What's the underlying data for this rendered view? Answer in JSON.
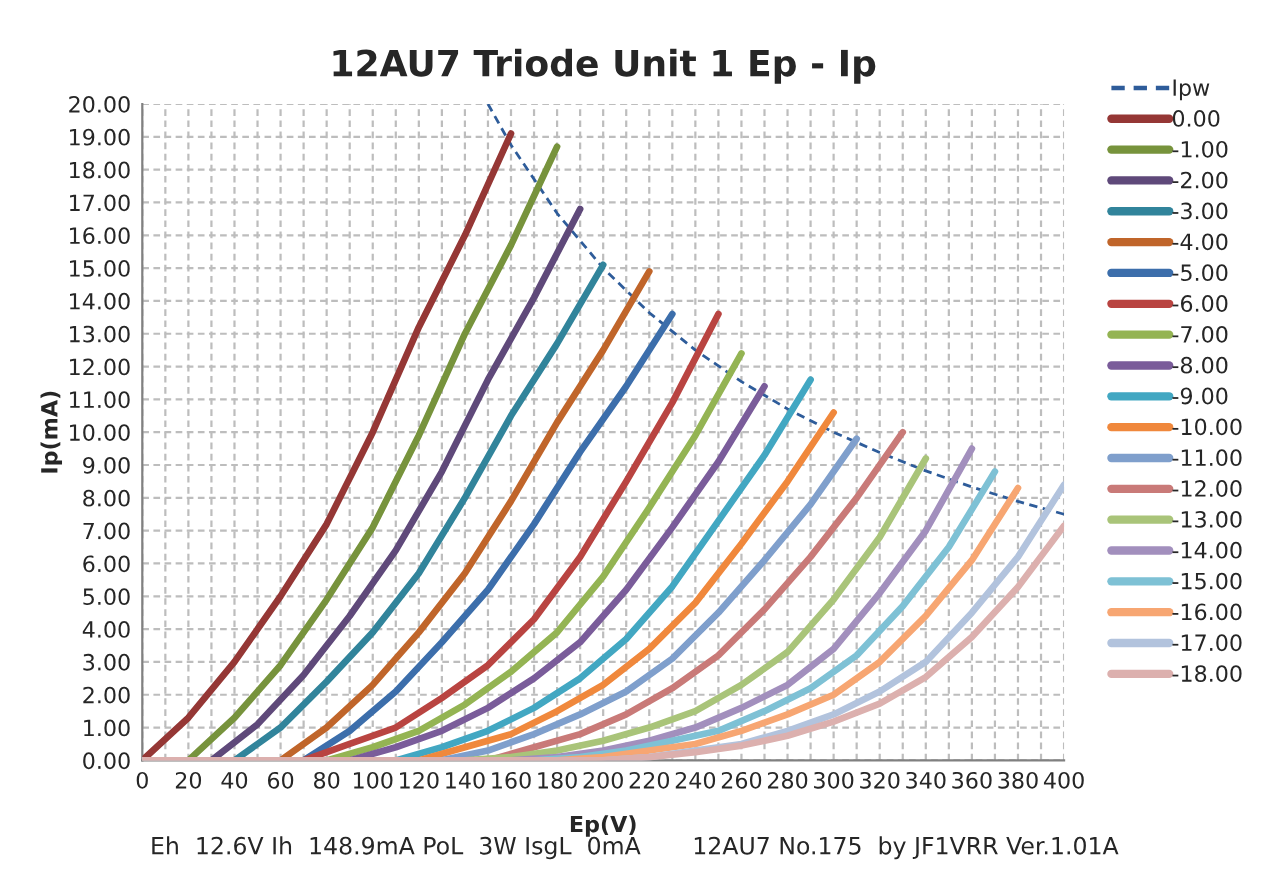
{
  "chart_data": {
    "type": "line",
    "title": "12AU7 Triode Unit 1 Ep - Ip",
    "xlabel": "Ep(V)",
    "ylabel": "Ip(mA)",
    "annotations": [
      "Eh  12.6V Ih  148.9mA PoL  3W IsgL  0mA",
      "12AU7 No.175  by JF1VRR Ver.1.01A"
    ],
    "xlim": [
      0,
      400
    ],
    "ylim": [
      0,
      20
    ],
    "xticks": [
      0,
      {
        "value": 10,
        "label": null
      },
      20,
      {
        "value": 30,
        "label": null
      },
      40,
      {
        "value": 50,
        "label": null
      },
      60,
      {
        "value": 70,
        "label": null
      },
      80,
      {
        "value": 90,
        "label": null
      },
      100,
      {
        "value": 110,
        "label": null
      },
      120,
      {
        "value": 130,
        "label": null
      },
      140,
      {
        "value": 150,
        "label": null
      },
      160,
      {
        "value": 170,
        "label": null
      },
      180,
      {
        "value": 190,
        "label": null
      },
      200,
      {
        "value": 210,
        "label": null
      },
      220,
      {
        "value": 230,
        "label": null
      },
      240,
      {
        "value": 250,
        "label": null
      },
      260,
      {
        "value": 270,
        "label": null
      },
      280,
      {
        "value": 290,
        "label": null
      },
      300,
      {
        "value": 310,
        "label": null
      },
      320,
      {
        "value": 330,
        "label": null
      },
      340,
      {
        "value": 350,
        "label": null
      },
      360,
      {
        "value": 370,
        "label": null
      },
      380,
      {
        "value": 390,
        "label": null
      },
      400
    ],
    "yticks": [
      {
        "value": 0,
        "label": "0.00"
      },
      {
        "value": 1,
        "label": "1.00"
      },
      {
        "value": 2,
        "label": "2.00"
      },
      {
        "value": 3,
        "label": "3.00"
      },
      {
        "value": 4,
        "label": "4.00"
      },
      {
        "value": 5,
        "label": "5.00"
      },
      {
        "value": 6,
        "label": "6.00"
      },
      {
        "value": 7,
        "label": "7.00"
      },
      {
        "value": 8,
        "label": "8.00"
      },
      {
        "value": 9,
        "label": "9.00"
      },
      {
        "value": 10,
        "label": "10.00"
      },
      {
        "value": 11,
        "label": "11.00"
      },
      {
        "value": 12,
        "label": "12.00"
      },
      {
        "value": 13,
        "label": "13.00"
      },
      {
        "value": 14,
        "label": "14.00"
      },
      {
        "value": 15,
        "label": "15.00"
      },
      {
        "value": 16,
        "label": "16.00"
      },
      {
        "value": 17,
        "label": "17.00"
      },
      {
        "value": 18,
        "label": "18.00"
      },
      {
        "value": 19,
        "label": "19.00"
      },
      {
        "value": 20,
        "label": "20.00"
      }
    ],
    "grid": true,
    "legend": "right",
    "marker": "none",
    "series": [
      {
        "name": "Ipw",
        "color": "#2e5c9a",
        "line_style": "dashed",
        "x": [
          150,
          160,
          180,
          200,
          220,
          240,
          260,
          280,
          300,
          320,
          340,
          360,
          380,
          400
        ],
        "values": [
          20,
          18.75,
          16.67,
          15,
          13.64,
          12.5,
          11.54,
          10.71,
          10,
          9.38,
          8.82,
          8.33,
          7.89,
          7.5
        ]
      },
      {
        "name": "0.00",
        "color": "#953735",
        "x": [
          0,
          20,
          40,
          60,
          80,
          100,
          120,
          140,
          160
        ],
        "values": [
          0,
          1.3,
          3.0,
          5.0,
          7.2,
          10.0,
          13.2,
          16.0,
          19.1
        ]
      },
      {
        "name": "-1.00",
        "color": "#77933c",
        "x": [
          0,
          20,
          40,
          60,
          80,
          100,
          120,
          140,
          160,
          180
        ],
        "values": [
          0,
          0,
          1.3,
          2.9,
          4.9,
          7.1,
          9.9,
          13.0,
          15.7,
          18.7
        ]
      },
      {
        "name": "-2.00",
        "color": "#5f497a",
        "x": [
          0,
          30,
          50,
          70,
          90,
          110,
          130,
          150,
          170,
          190
        ],
        "values": [
          0,
          0,
          1.1,
          2.6,
          4.4,
          6.4,
          8.8,
          11.6,
          14.1,
          16.8
        ]
      },
      {
        "name": "-3.00",
        "color": "#31849b",
        "x": [
          0,
          40,
          60,
          80,
          100,
          120,
          140,
          160,
          180,
          200
        ],
        "values": [
          0,
          0,
          1.0,
          2.4,
          3.9,
          5.7,
          8.0,
          10.5,
          12.7,
          15.1
        ]
      },
      {
        "name": "-4.00",
        "color": "#c0652a",
        "x": [
          0,
          60,
          80,
          100,
          120,
          140,
          160,
          180,
          200,
          220
        ],
        "values": [
          0,
          0,
          1.0,
          2.3,
          3.9,
          5.7,
          7.9,
          10.3,
          12.5,
          14.9
        ]
      },
      {
        "name": "-5.00",
        "color": "#3c6eab",
        "x": [
          0,
          70,
          90,
          110,
          130,
          150,
          170,
          190,
          210,
          230
        ],
        "values": [
          0,
          0,
          0.9,
          2.1,
          3.6,
          5.2,
          7.2,
          9.4,
          11.4,
          13.6
        ]
      },
      {
        "name": "-6.00",
        "color": "#b94441",
        "x": [
          0,
          70,
          90,
          110,
          130,
          150,
          170,
          190,
          210,
          230,
          250
        ],
        "values": [
          0,
          0,
          0.5,
          1.0,
          1.9,
          2.9,
          4.3,
          6.2,
          8.5,
          10.9,
          13.6
        ]
      },
      {
        "name": "-7.00",
        "color": "#94b453",
        "x": [
          0,
          80,
          100,
          120,
          140,
          160,
          180,
          200,
          220,
          240,
          260
        ],
        "values": [
          0,
          0,
          0.4,
          0.9,
          1.7,
          2.7,
          3.9,
          5.6,
          7.7,
          9.9,
          12.4
        ]
      },
      {
        "name": "-8.00",
        "color": "#7a5c9a",
        "x": [
          0,
          90,
          110,
          130,
          150,
          170,
          190,
          210,
          230,
          250,
          270
        ],
        "values": [
          0,
          0,
          0.4,
          0.9,
          1.6,
          2.5,
          3.6,
          5.2,
          7.1,
          9.1,
          11.4
        ]
      },
      {
        "name": "-9.00",
        "color": "#42a7c2",
        "x": [
          0,
          110,
          130,
          150,
          170,
          190,
          210,
          230,
          250,
          270,
          290
        ],
        "values": [
          0,
          0,
          0.4,
          0.9,
          1.6,
          2.5,
          3.7,
          5.3,
          7.3,
          9.3,
          11.6
        ]
      },
      {
        "name": "-10.00",
        "color": "#f0883c",
        "x": [
          0,
          120,
          140,
          160,
          180,
          200,
          220,
          240,
          260,
          280,
          300
        ],
        "values": [
          0,
          0,
          0.4,
          0.8,
          1.5,
          2.3,
          3.4,
          4.8,
          6.6,
          8.5,
          10.6
        ]
      },
      {
        "name": "-11.00",
        "color": "#7f9fcc",
        "x": [
          0,
          130,
          150,
          170,
          190,
          210,
          230,
          250,
          270,
          290,
          310
        ],
        "values": [
          0,
          0,
          0.3,
          0.8,
          1.4,
          2.1,
          3.1,
          4.5,
          6.1,
          7.8,
          9.8
        ]
      },
      {
        "name": "-12.00",
        "color": "#c97a78",
        "x": [
          0,
          150,
          170,
          190,
          210,
          230,
          250,
          270,
          290,
          310,
          330
        ],
        "values": [
          0,
          0,
          0.4,
          0.8,
          1.4,
          2.2,
          3.2,
          4.6,
          6.2,
          8.0,
          10.0
        ]
      },
      {
        "name": "-13.00",
        "color": "#a9c479",
        "x": [
          0,
          140,
          160,
          180,
          200,
          220,
          240,
          260,
          280,
          300,
          320,
          340
        ],
        "values": [
          0,
          0,
          0.1,
          0.3,
          0.6,
          1.0,
          1.5,
          2.3,
          3.3,
          4.9,
          6.8,
          9.2
        ]
      },
      {
        "name": "-14.00",
        "color": "#a28fbd",
        "x": [
          0,
          160,
          180,
          200,
          220,
          240,
          260,
          280,
          300,
          320,
          340,
          360
        ],
        "values": [
          0,
          0,
          0.1,
          0.3,
          0.6,
          1.0,
          1.6,
          2.3,
          3.4,
          5.1,
          7.0,
          9.5
        ]
      },
      {
        "name": "-15.00",
        "color": "#7ec1d5",
        "x": [
          0,
          170,
          190,
          210,
          230,
          250,
          270,
          290,
          310,
          330,
          350,
          370
        ],
        "values": [
          0,
          0,
          0.1,
          0.3,
          0.6,
          0.9,
          1.5,
          2.2,
          3.2,
          4.7,
          6.5,
          8.8
        ]
      },
      {
        "name": "-16.00",
        "color": "#f7a672",
        "x": [
          0,
          180,
          200,
          220,
          240,
          260,
          280,
          300,
          320,
          340,
          360,
          380
        ],
        "values": [
          0,
          0,
          0.1,
          0.3,
          0.5,
          0.9,
          1.4,
          2.0,
          3.0,
          4.4,
          6.1,
          8.3
        ]
      },
      {
        "name": "-17.00",
        "color": "#b2c3dd",
        "x": [
          0,
          200,
          220,
          240,
          260,
          280,
          300,
          320,
          340,
          360,
          380,
          400
        ],
        "values": [
          0,
          0,
          0.1,
          0.3,
          0.5,
          0.9,
          1.4,
          2.1,
          3.0,
          4.5,
          6.2,
          8.4
        ]
      },
      {
        "name": "-18.00",
        "color": "#dcb0ae",
        "x": [
          0,
          200,
          220,
          240,
          260,
          280,
          300,
          320,
          340,
          360,
          380,
          400
        ],
        "values": [
          0,
          0,
          0.1,
          0.25,
          0.45,
          0.75,
          1.18,
          1.73,
          2.54,
          3.76,
          5.28,
          7.15
        ]
      }
    ]
  }
}
